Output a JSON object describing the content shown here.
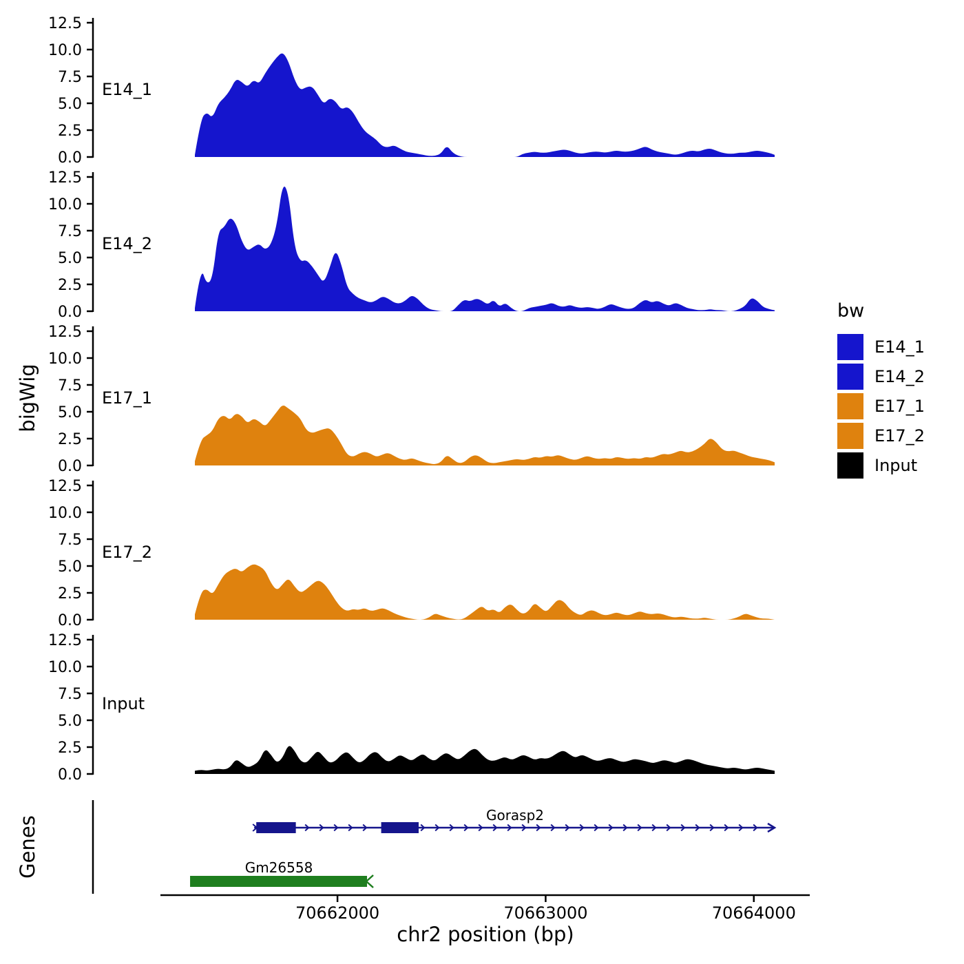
{
  "figure": {
    "y_axis_title": "bigWig",
    "genes_axis_title": "Genes",
    "x_axis_title": "chr2 position (bp)",
    "legend": {
      "title": "bw",
      "entries": [
        {
          "label": "E14_1",
          "color": "#1515cd"
        },
        {
          "label": "E14_2",
          "color": "#1515cd"
        },
        {
          "label": "E17_1",
          "color": "#df820e"
        },
        {
          "label": "E17_2",
          "color": "#df820e"
        },
        {
          "label": "Input",
          "color": "#000000"
        }
      ]
    }
  },
  "chart_data": {
    "type": "area",
    "title": "",
    "xlabel": "chr2 position (bp)",
    "ylabel": "bigWig",
    "x_range": [
      70661315,
      70664100
    ],
    "x_ticks": [
      70662000,
      70663000,
      70664000
    ],
    "y_ticks": [
      0.0,
      2.5,
      5.0,
      7.5,
      10.0,
      12.5
    ],
    "ylim": [
      0,
      12.5
    ],
    "grid": false,
    "legend_position": "right",
    "tracks": [
      {
        "name": "E14_1",
        "color": "#1515cd",
        "values": [
          0.2,
          3.5,
          4.2,
          3.6,
          5.0,
          5.5,
          6.2,
          7.3,
          7.0,
          6.5,
          7.2,
          6.8,
          7.8,
          8.6,
          9.3,
          9.8,
          8.9,
          7.2,
          6.2,
          6.5,
          6.6,
          5.8,
          4.9,
          5.5,
          5.2,
          4.4,
          4.7,
          4.2,
          3.2,
          2.4,
          2.0,
          1.6,
          1.0,
          0.9,
          1.1,
          0.8,
          0.5,
          0.4,
          0.3,
          0.2,
          0.1,
          0.1,
          0.3,
          1.1,
          0.4,
          0.1,
          0,
          0,
          0,
          0,
          0,
          0,
          0,
          0,
          0,
          0,
          0.3,
          0.4,
          0.5,
          0.4,
          0.4,
          0.5,
          0.6,
          0.7,
          0.6,
          0.4,
          0.3,
          0.4,
          0.5,
          0.5,
          0.4,
          0.5,
          0.6,
          0.5,
          0.5,
          0.6,
          0.8,
          1.0,
          0.7,
          0.5,
          0.4,
          0.3,
          0.2,
          0.3,
          0.5,
          0.6,
          0.5,
          0.7,
          0.8,
          0.6,
          0.4,
          0.3,
          0.3,
          0.4,
          0.4,
          0.5,
          0.6,
          0.5,
          0.4,
          0.2
        ]
      },
      {
        "name": "E14_2",
        "color": "#1515cd",
        "values": [
          0.3,
          4.2,
          2.5,
          3.0,
          7.5,
          7.8,
          8.8,
          8.2,
          6.5,
          5.6,
          6.0,
          6.3,
          5.7,
          6.2,
          8.0,
          12.0,
          11.0,
          6.0,
          4.6,
          4.8,
          4.2,
          3.4,
          2.6,
          4.0,
          5.8,
          4.4,
          2.2,
          1.6,
          1.2,
          1.0,
          0.8,
          1.0,
          1.4,
          1.2,
          0.8,
          0.7,
          1.0,
          1.5,
          1.2,
          0.6,
          0.2,
          0.1,
          0,
          0,
          0,
          0.6,
          1.1,
          0.9,
          1.2,
          1.0,
          0.6,
          1.1,
          0.4,
          0.8,
          0.3,
          0,
          0,
          0.3,
          0.4,
          0.5,
          0.6,
          0.8,
          0.5,
          0.4,
          0.6,
          0.4,
          0.3,
          0.4,
          0.3,
          0.2,
          0.4,
          0.7,
          0.5,
          0.3,
          0.2,
          0.3,
          0.8,
          1.1,
          0.8,
          1.0,
          0.7,
          0.5,
          0.8,
          0.6,
          0.3,
          0.2,
          0.1,
          0.1,
          0.2,
          0.1,
          0.1,
          0,
          0,
          0.2,
          0.5,
          1.3,
          1.0,
          0.4,
          0.2,
          0.1
        ]
      },
      {
        "name": "E17_1",
        "color": "#df820e",
        "values": [
          0.4,
          2.4,
          2.8,
          3.2,
          4.4,
          4.7,
          4.2,
          4.9,
          4.6,
          3.9,
          4.4,
          4.1,
          3.6,
          4.3,
          5.0,
          5.7,
          5.3,
          4.9,
          4.4,
          3.3,
          3.0,
          3.2,
          3.4,
          3.5,
          2.9,
          2.0,
          1.0,
          0.8,
          1.1,
          1.3,
          1.1,
          0.8,
          1.0,
          1.2,
          0.9,
          0.6,
          0.5,
          0.7,
          0.5,
          0.3,
          0.2,
          0.1,
          0.3,
          1.0,
          0.6,
          0.2,
          0.3,
          0.8,
          1.0,
          0.7,
          0.3,
          0.2,
          0.3,
          0.4,
          0.5,
          0.6,
          0.5,
          0.6,
          0.8,
          0.7,
          0.9,
          0.8,
          1.0,
          0.8,
          0.6,
          0.5,
          0.7,
          0.9,
          0.7,
          0.6,
          0.7,
          0.6,
          0.8,
          0.7,
          0.6,
          0.7,
          0.6,
          0.8,
          0.7,
          0.9,
          1.1,
          1.0,
          1.2,
          1.4,
          1.2,
          1.3,
          1.6,
          2.0,
          2.6,
          2.2,
          1.5,
          1.3,
          1.4,
          1.2,
          1.0,
          0.8,
          0.7,
          0.6,
          0.5,
          0.3
        ]
      },
      {
        "name": "E17_2",
        "color": "#df820e",
        "values": [
          0.5,
          2.6,
          2.9,
          2.3,
          3.3,
          4.2,
          4.6,
          4.8,
          4.4,
          4.9,
          5.2,
          5.0,
          4.6,
          3.4,
          2.7,
          3.3,
          3.9,
          3.1,
          2.5,
          2.8,
          3.3,
          3.7,
          3.4,
          2.7,
          1.8,
          1.1,
          0.8,
          1.0,
          0.9,
          1.1,
          0.8,
          0.9,
          1.1,
          0.9,
          0.6,
          0.4,
          0.2,
          0.1,
          0,
          0,
          0.2,
          0.6,
          0.4,
          0.2,
          0.1,
          0,
          0.1,
          0.5,
          0.9,
          1.3,
          0.8,
          1.0,
          0.6,
          1.2,
          1.5,
          0.9,
          0.5,
          0.8,
          1.6,
          1.1,
          0.7,
          1.3,
          1.9,
          1.7,
          1.0,
          0.6,
          0.4,
          0.8,
          0.9,
          0.6,
          0.4,
          0.5,
          0.7,
          0.5,
          0.4,
          0.6,
          0.8,
          0.6,
          0.5,
          0.6,
          0.5,
          0.3,
          0.2,
          0.3,
          0.2,
          0.1,
          0.1,
          0.2,
          0.1,
          0,
          0,
          0,
          0.1,
          0.3,
          0.6,
          0.4,
          0.2,
          0.1,
          0.1,
          0
        ]
      },
      {
        "name": "Input",
        "color": "#000000",
        "values": [
          0.3,
          0.4,
          0.3,
          0.4,
          0.5,
          0.4,
          0.6,
          1.4,
          1.0,
          0.6,
          0.8,
          1.2,
          2.4,
          1.8,
          1.0,
          1.5,
          2.8,
          2.2,
          1.2,
          1.0,
          1.6,
          2.2,
          1.6,
          1.0,
          1.2,
          1.8,
          2.1,
          1.5,
          1.0,
          1.3,
          1.9,
          2.1,
          1.5,
          1.1,
          1.4,
          1.8,
          1.5,
          1.2,
          1.6,
          1.9,
          1.4,
          1.2,
          1.7,
          2.0,
          1.6,
          1.3,
          1.7,
          2.2,
          2.4,
          1.8,
          1.3,
          1.2,
          1.4,
          1.6,
          1.3,
          1.5,
          1.8,
          1.6,
          1.3,
          1.5,
          1.4,
          1.6,
          2.0,
          2.2,
          1.8,
          1.5,
          1.8,
          1.6,
          1.3,
          1.2,
          1.4,
          1.5,
          1.3,
          1.1,
          1.2,
          1.4,
          1.3,
          1.2,
          1.0,
          1.1,
          1.3,
          1.2,
          1.0,
          1.2,
          1.4,
          1.3,
          1.1,
          0.9,
          0.8,
          0.7,
          0.6,
          0.5,
          0.6,
          0.5,
          0.4,
          0.5,
          0.6,
          0.5,
          0.4,
          0.3
        ]
      }
    ],
    "genes": [
      {
        "name": "Gorasp2",
        "color": "#15158c",
        "strand": "+",
        "start": 70661600,
        "end": 70664100,
        "exons": [
          [
            70661610,
            70661800
          ],
          [
            70662210,
            70662390
          ]
        ]
      },
      {
        "name": "Gm26558",
        "color": "#1e7e1e",
        "strand": "-",
        "start": 70661292,
        "end": 70662142,
        "exons": [
          [
            70661292,
            70662142
          ]
        ]
      }
    ]
  }
}
